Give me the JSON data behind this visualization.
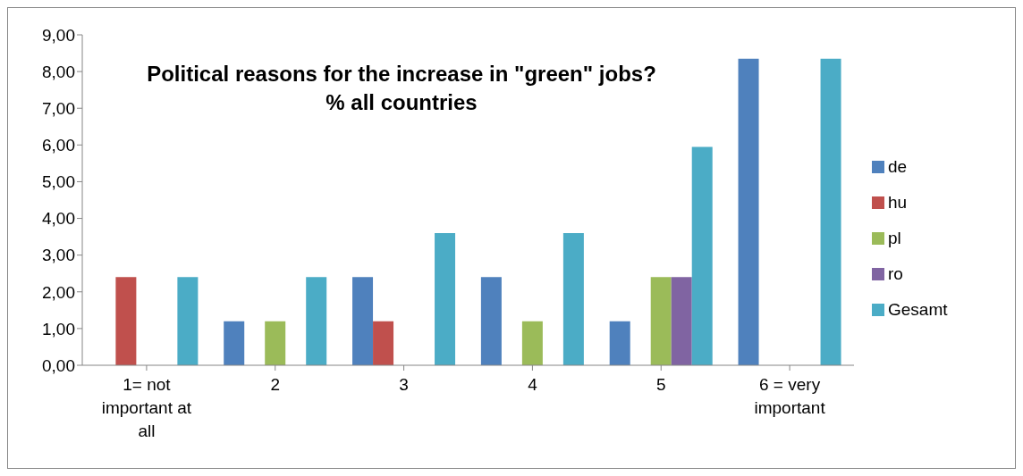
{
  "chart_data": {
    "type": "bar",
    "title": "Political reasons for the increase in \"green\" jobs?\n% all countries",
    "categories": [
      "1= not important at all",
      "2",
      "3",
      "4",
      "5",
      "6 = very important"
    ],
    "series": [
      {
        "name": "de",
        "color": "#4f81bd",
        "values": [
          0,
          1.2,
          2.4,
          2.4,
          1.2,
          8.35
        ]
      },
      {
        "name": "hu",
        "color": "#c0504d",
        "values": [
          2.4,
          0,
          1.2,
          0,
          0,
          0
        ]
      },
      {
        "name": "pl",
        "color": "#9bbb59",
        "values": [
          0,
          1.2,
          0,
          1.2,
          2.4,
          0
        ]
      },
      {
        "name": "ro",
        "color": "#8064a2",
        "values": [
          0,
          0,
          0,
          0,
          2.4,
          0
        ]
      },
      {
        "name": "Gesamt",
        "color": "#4bacc6",
        "values": [
          2.4,
          2.4,
          3.6,
          3.6,
          5.95,
          8.35
        ]
      }
    ],
    "ylim": [
      0,
      9
    ],
    "yticks": [
      {
        "value": 0,
        "label": "0,00"
      },
      {
        "value": 1,
        "label": "1,00"
      },
      {
        "value": 2,
        "label": "2,00"
      },
      {
        "value": 3,
        "label": "3,00"
      },
      {
        "value": 4,
        "label": "4,00"
      },
      {
        "value": 5,
        "label": "5,00"
      },
      {
        "value": 6,
        "label": "6,00"
      },
      {
        "value": 7,
        "label": "7,00"
      },
      {
        "value": 8,
        "label": "8,00"
      },
      {
        "value": 9,
        "label": "9,00"
      }
    ],
    "grid": false,
    "legend": "right"
  }
}
